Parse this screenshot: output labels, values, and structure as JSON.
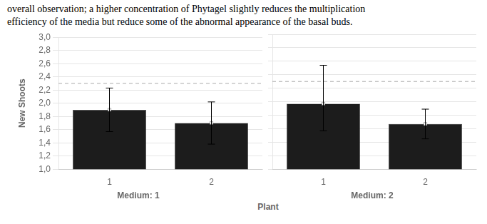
{
  "text_lines": [
    "overall observation; a higher concentration of Phytagel slightly reduces the multiplication",
    "efficiency of the media but reduce some of the abnormal appearance of the basal buds."
  ],
  "chart_data": {
    "type": "bar",
    "xlabel": "Plant",
    "ylabel": "New Shoots",
    "ylim": [
      1.0,
      3.0
    ],
    "yticks": [
      {
        "value": 1.0,
        "label": "1,0"
      },
      {
        "value": 1.2,
        "label": "1,2"
      },
      {
        "value": 1.4,
        "label": "1,4"
      },
      {
        "value": 1.6,
        "label": "1,6"
      },
      {
        "value": 1.8,
        "label": "1,8"
      },
      {
        "value": 2.0,
        "label": "2,0"
      },
      {
        "value": 2.2,
        "label": "2,2"
      },
      {
        "value": 2.4,
        "label": "2,4"
      },
      {
        "value": 2.6,
        "label": "2,6"
      },
      {
        "value": 2.8,
        "label": "2,8"
      },
      {
        "value": 3.0,
        "label": "3,0"
      }
    ],
    "grid": true,
    "color": "#1c1c1c",
    "marker": "square",
    "reference_line": {
      "y": 2.3,
      "color": "#aaaaaa",
      "line_style": "dashed"
    },
    "panels": [
      {
        "title": "Medium: 1",
        "categories": [
          "1",
          "2"
        ],
        "values": [
          1.9,
          1.7
        ],
        "errors_upper": [
          0.33,
          0.32
        ],
        "errors_lower": [
          0.33,
          0.32
        ]
      },
      {
        "title": "Medium: 2",
        "categories": [
          "1",
          "2"
        ],
        "values": [
          1.97,
          1.67
        ],
        "errors_upper": [
          0.57,
          0.22
        ],
        "errors_lower": [
          0.4,
          0.22
        ]
      }
    ]
  }
}
